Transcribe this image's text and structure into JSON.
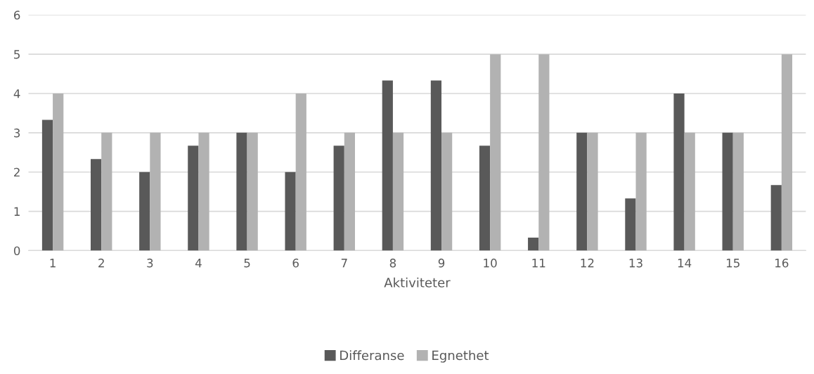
{
  "chart_data": {
    "type": "bar",
    "xlabel": "Aktiviteter",
    "categories": [
      "1",
      "2",
      "3",
      "4",
      "5",
      "6",
      "7",
      "8",
      "9",
      "10",
      "11",
      "12",
      "13",
      "14",
      "15",
      "16"
    ],
    "series": [
      {
        "name": "Differanse",
        "color": "#595959",
        "values": [
          3.33,
          2.33,
          2,
          2.67,
          3,
          2,
          2.67,
          4.33,
          4.33,
          2.67,
          0.33,
          3,
          1.33,
          4,
          3,
          1.67
        ]
      },
      {
        "name": "Egnethet",
        "color": "#b2b2b2",
        "values": [
          4,
          3,
          3,
          3,
          3,
          4,
          3,
          3,
          3,
          5,
          5,
          3,
          3,
          3,
          3,
          5
        ]
      }
    ],
    "ylim": [
      0,
      6
    ],
    "yticks": [
      0,
      1,
      2,
      3,
      4,
      5,
      6
    ],
    "grid": "y",
    "legend": "bottom"
  }
}
